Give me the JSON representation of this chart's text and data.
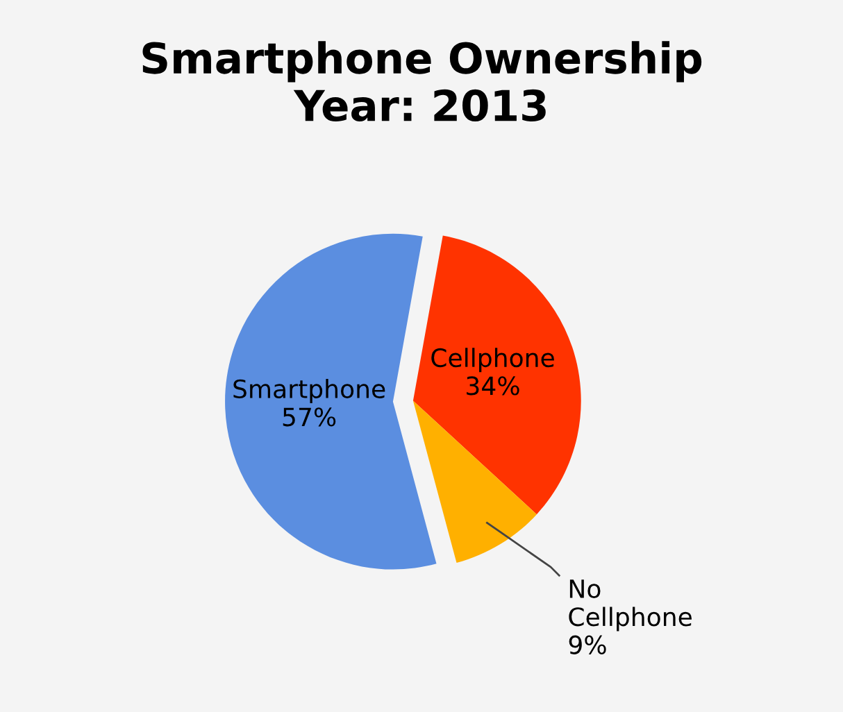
{
  "chart_data": {
    "type": "pie",
    "title": "Smartphone Ownership\nYear: 2013",
    "categories": [
      "Smartphone",
      "Cellphone",
      "No Cellphone"
    ],
    "values": [
      57,
      34,
      9
    ],
    "value_labels": [
      "57%",
      "34%",
      "9%"
    ],
    "colors": [
      "#5b8ee0",
      "#ff3300",
      "#ffb000"
    ]
  }
}
